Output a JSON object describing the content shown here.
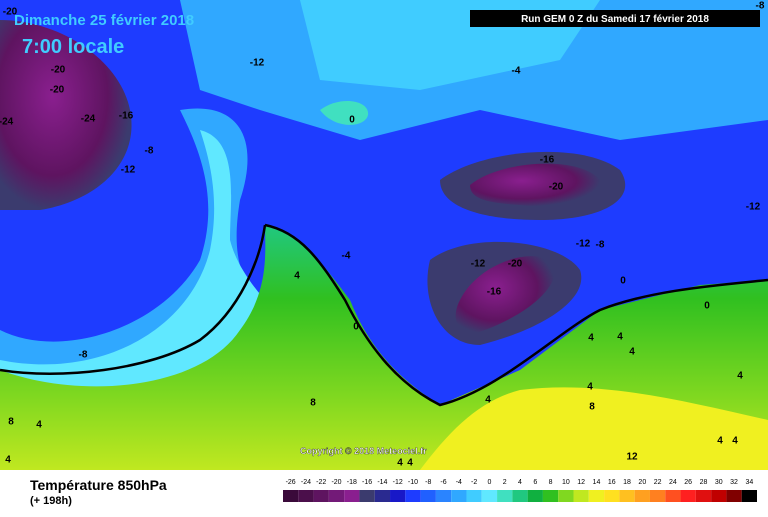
{
  "header": {
    "date": "Dimanche 25 février 2018",
    "time": "7:00 locale",
    "run": "Run GEM 0 Z du Samedi 17 février 2018"
  },
  "copyright": "Copyright © 2018 Meteociel.fr",
  "footer": {
    "title": "Température 850hPa",
    "lead": "(+ 198h)"
  },
  "contour_labels": [
    "-20",
    "-20",
    "-20",
    "-24",
    "-24",
    "-16",
    "-8",
    "-12",
    "-12",
    "-4",
    "0",
    "-16",
    "-20",
    "-12",
    "-4",
    "-12",
    "-20",
    "-12",
    "-8",
    "-16",
    "0",
    "4",
    "0",
    "0",
    "4",
    "4",
    "4",
    "-8",
    "4",
    "8",
    "4",
    "4",
    "8",
    "8",
    "4",
    "12",
    "4",
    "4",
    "4",
    "4",
    "4",
    "-8"
  ],
  "legend": {
    "ticks": [
      -26,
      -24,
      -22,
      -20,
      -18,
      -16,
      -14,
      -12,
      -10,
      -8,
      -6,
      -4,
      -2,
      0,
      2,
      4,
      6,
      8,
      10,
      12,
      14,
      16,
      18,
      20,
      22,
      24,
      26,
      28,
      30,
      32,
      34
    ],
    "colors": [
      "#3a0a3a",
      "#4b0f4b",
      "#5e1460",
      "#731a78",
      "#8a1f8f",
      "#3b3b6e",
      "#2a2a90",
      "#1818c8",
      "#1e3cff",
      "#2060ff",
      "#2a84ff",
      "#30a8ff",
      "#40ccff",
      "#60e8ff",
      "#40e0c0",
      "#20c880",
      "#10b040",
      "#30c020",
      "#80d820",
      "#c0e820",
      "#f0f020",
      "#ffe020",
      "#ffc020",
      "#ffa020",
      "#ff8020",
      "#ff5020",
      "#ff2020",
      "#e01010",
      "#c00000",
      "#800000",
      "#000000"
    ]
  }
}
